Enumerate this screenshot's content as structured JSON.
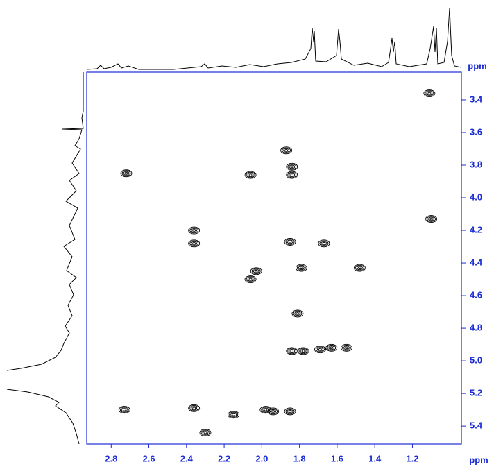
{
  "chart_data": {
    "type": "contour",
    "x_label": "ppm",
    "y_label": "ppm",
    "xlim": [
      2.93,
      0.94
    ],
    "ylim": [
      3.23,
      5.51
    ],
    "xticks": [
      2.8,
      2.6,
      2.4,
      2.2,
      {
        "value": 2,
        "label": "2.0"
      },
      1.8,
      1.6,
      1.4,
      1.2
    ],
    "yticks": [
      3.4,
      3.6,
      3.8,
      {
        "value": 4,
        "label": "4.0"
      },
      4.2,
      4.4,
      4.6,
      4.8,
      {
        "value": 5,
        "label": "5.0"
      },
      5.2,
      5.4
    ],
    "color": "#000000",
    "axis_color": "#1a2bd6",
    "x": [
      1.11,
      2.72,
      2.06,
      1.87,
      1.84,
      1.84,
      1.85,
      1.67,
      1.48,
      1.79,
      2.03,
      2.06,
      2.36,
      2.36,
      1.81,
      1.84,
      1.78,
      1.69,
      1.63,
      1.55,
      2.73,
      2.36,
      1.98,
      1.94,
      1.85,
      2.3,
      2.15,
      1.1
    ],
    "y": [
      3.36,
      3.85,
      3.86,
      3.71,
      3.81,
      3.86,
      4.27,
      4.28,
      4.43,
      4.43,
      4.45,
      4.5,
      4.2,
      4.28,
      4.71,
      4.94,
      4.94,
      4.93,
      4.92,
      4.92,
      5.3,
      5.29,
      5.3,
      5.31,
      5.31,
      5.44,
      5.33,
      4.13
    ]
  }
}
